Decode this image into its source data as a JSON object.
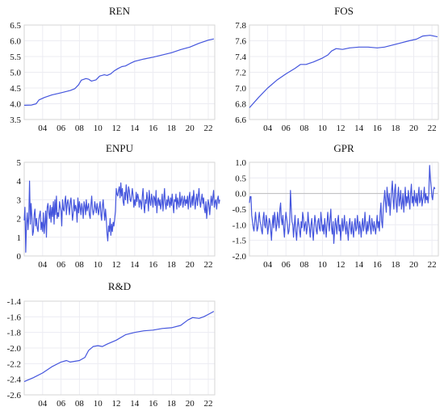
{
  "series_color": "#4455dd",
  "chart_data": [
    {
      "type": "line",
      "title": "REN",
      "xlim": [
        2002,
        2022.7
      ],
      "ylim": [
        3.5,
        6.5
      ],
      "x_ticks": [
        4,
        6,
        8,
        10,
        12,
        14,
        16,
        18,
        20,
        22
      ],
      "x_tick_labels": [
        "04",
        "06",
        "08",
        "10",
        "12",
        "14",
        "16",
        "18",
        "20",
        "22"
      ],
      "y_ticks": [
        3.5,
        4.0,
        4.5,
        5.0,
        5.5,
        6.0,
        6.5
      ],
      "y_tick_labels": [
        "3.5",
        "4.0",
        "4.5",
        "5.0",
        "5.5",
        "6.0",
        "6.5"
      ],
      "grid": true,
      "mode": "smooth",
      "points": [
        [
          2002.0,
          3.95
        ],
        [
          2002.8,
          3.96
        ],
        [
          2003.3,
          4.0
        ],
        [
          2003.6,
          4.12
        ],
        [
          2004.2,
          4.2
        ],
        [
          2005.0,
          4.28
        ],
        [
          2006.0,
          4.35
        ],
        [
          2007.0,
          4.42
        ],
        [
          2007.5,
          4.48
        ],
        [
          2007.9,
          4.6
        ],
        [
          2008.2,
          4.75
        ],
        [
          2008.7,
          4.8
        ],
        [
          2009.0,
          4.78
        ],
        [
          2009.3,
          4.72
        ],
        [
          2009.8,
          4.76
        ],
        [
          2010.2,
          4.88
        ],
        [
          2010.7,
          4.92
        ],
        [
          2011.0,
          4.9
        ],
        [
          2011.4,
          4.95
        ],
        [
          2011.8,
          5.05
        ],
        [
          2012.2,
          5.12
        ],
        [
          2012.6,
          5.18
        ],
        [
          2013.0,
          5.2
        ],
        [
          2013.5,
          5.28
        ],
        [
          2014.0,
          5.35
        ],
        [
          2015.0,
          5.42
        ],
        [
          2016.0,
          5.48
        ],
        [
          2017.0,
          5.55
        ],
        [
          2018.0,
          5.62
        ],
        [
          2019.0,
          5.72
        ],
        [
          2020.0,
          5.8
        ],
        [
          2021.0,
          5.92
        ],
        [
          2022.0,
          6.02
        ],
        [
          2022.6,
          6.06
        ]
      ]
    },
    {
      "type": "line",
      "title": "FOS",
      "xlim": [
        2002,
        2022.7
      ],
      "ylim": [
        6.6,
        7.8
      ],
      "x_ticks": [
        4,
        6,
        8,
        10,
        12,
        14,
        16,
        18,
        20,
        22
      ],
      "x_tick_labels": [
        "04",
        "06",
        "08",
        "10",
        "12",
        "14",
        "16",
        "18",
        "20",
        "22"
      ],
      "y_ticks": [
        6.6,
        6.8,
        7.0,
        7.2,
        7.4,
        7.6,
        7.8
      ],
      "y_tick_labels": [
        "6.6",
        "6.8",
        "7.0",
        "7.2",
        "7.4",
        "7.6",
        "7.8"
      ],
      "grid": true,
      "mode": "smooth",
      "points": [
        [
          2002.0,
          6.75
        ],
        [
          2003.0,
          6.88
        ],
        [
          2004.0,
          7.0
        ],
        [
          2005.0,
          7.1
        ],
        [
          2006.0,
          7.18
        ],
        [
          2007.0,
          7.25
        ],
        [
          2007.6,
          7.3
        ],
        [
          2008.2,
          7.3
        ],
        [
          2009.0,
          7.33
        ],
        [
          2010.0,
          7.38
        ],
        [
          2010.6,
          7.42
        ],
        [
          2011.0,
          7.47
        ],
        [
          2011.5,
          7.5
        ],
        [
          2012.2,
          7.49
        ],
        [
          2013.0,
          7.51
        ],
        [
          2014.0,
          7.52
        ],
        [
          2015.0,
          7.52
        ],
        [
          2016.0,
          7.51
        ],
        [
          2016.8,
          7.52
        ],
        [
          2017.5,
          7.54
        ],
        [
          2018.5,
          7.57
        ],
        [
          2019.5,
          7.6
        ],
        [
          2020.3,
          7.62
        ],
        [
          2021.0,
          7.66
        ],
        [
          2021.8,
          7.67
        ],
        [
          2022.6,
          7.65
        ]
      ]
    },
    {
      "type": "line",
      "title": "ENPU",
      "xlim": [
        2002,
        2022.7
      ],
      "ylim": [
        0,
        5
      ],
      "x_ticks": [
        4,
        6,
        8,
        10,
        12,
        14,
        16,
        18,
        20,
        22
      ],
      "x_tick_labels": [
        "04",
        "06",
        "08",
        "10",
        "12",
        "14",
        "16",
        "18",
        "20",
        "22"
      ],
      "y_ticks": [
        0,
        1,
        2,
        3,
        4,
        5
      ],
      "y_tick_labels": [
        "0",
        "1",
        "2",
        "3",
        "4",
        "5"
      ],
      "grid": true,
      "mode": "monthly",
      "x_start": 2002.0,
      "x_step": 0.0833,
      "values": [
        1.9,
        2.6,
        0.2,
        1.7,
        2.3,
        1.4,
        2.1,
        4.0,
        1.7,
        2.8,
        2.1,
        1.1,
        1.3,
        2.2,
        2.5,
        1.6,
        2.0,
        1.5,
        1.3,
        1.9,
        2.2,
        2.4,
        1.4,
        1.8,
        1.3,
        2.3,
        1.2,
        1.7,
        2.4,
        1.0,
        2.6,
        2.8,
        2.3,
        2.0,
        2.7,
        1.8,
        2.6,
        2.1,
        2.9,
        1.7,
        3.0,
        2.2,
        3.2,
        2.0,
        2.3,
        2.1,
        2.9,
        2.6,
        2.4,
        1.6,
        3.0,
        2.5,
        2.4,
        2.9,
        3.2,
        2.2,
        2.8,
        3.0,
        2.6,
        2.2,
        2.9,
        3.1,
        2.5,
        1.9,
        2.3,
        3.0,
        2.4,
        2.7,
        2.5,
        1.8,
        3.1,
        2.3,
        2.9,
        2.6,
        2.2,
        2.8,
        2.5,
        2.0,
        2.9,
        2.7,
        2.2,
        3.0,
        2.4,
        2.6,
        2.8,
        2.2,
        2.0,
        2.7,
        3.2,
        2.5,
        2.2,
        2.4,
        2.9,
        2.6,
        2.3,
        2.8,
        2.5,
        2.2,
        2.6,
        2.9,
        2.2,
        1.9,
        2.7,
        3.0,
        2.4,
        1.9,
        2.5,
        2.0,
        1.2,
        0.8,
        1.6,
        1.3,
        2.0,
        1.1,
        1.7,
        1.3,
        1.8,
        1.6,
        2.0,
        2.4,
        3.6,
        3.3,
        3.2,
        3.5,
        3.7,
        3.1,
        3.9,
        3.2,
        3.6,
        2.9,
        2.7,
        3.4,
        3.0,
        3.8,
        3.3,
        2.8,
        3.7,
        3.5,
        3.0,
        2.9,
        3.2,
        3.6,
        3.2,
        2.6,
        3.0,
        2.7,
        3.4,
        2.9,
        3.3,
        3.1,
        2.6,
        3.0,
        2.9,
        2.5,
        3.2,
        3.6,
        2.7,
        2.3,
        3.0,
        2.8,
        3.4,
        3.0,
        2.4,
        3.5,
        2.9,
        2.7,
        3.3,
        3.0,
        2.6,
        3.2,
        3.1,
        2.7,
        3.5,
        2.3,
        2.9,
        3.1,
        2.7,
        3.0,
        2.5,
        2.8,
        3.3,
        2.4,
        3.0,
        3.6,
        2.8,
        2.5,
        3.0,
        2.7,
        3.2,
        2.9,
        2.6,
        3.1,
        2.7,
        3.3,
        2.8,
        2.3,
        3.0,
        2.9,
        3.3,
        2.5,
        3.1,
        2.8,
        2.6,
        3.4,
        2.7,
        3.0,
        3.2,
        2.6,
        2.9,
        3.2,
        2.7,
        3.0,
        2.8,
        3.2,
        2.5,
        3.1,
        3.4,
        2.6,
        2.8,
        3.2,
        2.7,
        3.5,
        3.0,
        2.5,
        3.0,
        3.3,
        2.7,
        3.2,
        3.6,
        2.9,
        2.6,
        3.0,
        3.3,
        2.8,
        3.1,
        2.5,
        2.3,
        2.9,
        2.0,
        2.6,
        3.0,
        2.7,
        2.2,
        2.8,
        3.2,
        2.7,
        3.1,
        3.5,
        2.6,
        2.9,
        3.0,
        2.5,
        3.0,
        3.2,
        2.8,
        3.0
      ]
    },
    {
      "type": "line",
      "title": "GPR",
      "xlim": [
        2002,
        2022.7
      ],
      "ylim": [
        -2.0,
        1.0
      ],
      "x_ticks": [
        4,
        6,
        8,
        10,
        12,
        14,
        16,
        18,
        20,
        22
      ],
      "x_tick_labels": [
        "04",
        "06",
        "08",
        "10",
        "12",
        "14",
        "16",
        "18",
        "20",
        "22"
      ],
      "y_ticks": [
        -2.0,
        -1.5,
        -1.0,
        -0.5,
        0.0,
        0.5,
        1.0
      ],
      "y_tick_labels": [
        "-2.0",
        "-1.5",
        "-1.0",
        "-0.5",
        "0.0",
        "0.5",
        "1.0"
      ],
      "grid": true,
      "zero_line": true,
      "mode": "monthly",
      "x_start": 2002.0,
      "x_step": 0.0833,
      "values": [
        -0.3,
        -0.1,
        -0.1,
        -0.7,
        -0.9,
        -1.1,
        -1.2,
        -0.9,
        -0.6,
        -0.9,
        -1.2,
        -1.1,
        -0.8,
        -0.6,
        -0.9,
        -1.0,
        -1.2,
        -1.3,
        -0.8,
        -0.6,
        -1.0,
        -1.1,
        -0.7,
        -0.9,
        -1.3,
        -1.1,
        -0.8,
        -0.9,
        -1.2,
        -1.5,
        -1.0,
        -0.7,
        -1.1,
        -0.6,
        -0.8,
        -1.2,
        -1.0,
        -0.6,
        -0.9,
        -1.1,
        -0.5,
        -0.3,
        -0.8,
        -1.0,
        -0.7,
        -1.1,
        -1.4,
        -0.9,
        -0.6,
        -0.8,
        -1.0,
        -1.3,
        -1.2,
        -0.9,
        0.1,
        -0.5,
        -0.9,
        -1.0,
        -1.4,
        -1.0,
        -0.7,
        -1.2,
        -1.5,
        -1.1,
        -0.8,
        -1.0,
        -1.2,
        -1.4,
        -0.9,
        -1.1,
        -0.6,
        -0.8,
        -1.2,
        -1.0,
        -0.9,
        -1.3,
        -1.1,
        -0.6,
        -0.9,
        -1.1,
        -1.4,
        -1.0,
        -0.8,
        -1.2,
        -1.5,
        -1.1,
        -0.7,
        -0.9,
        -1.2,
        -1.3,
        -0.9,
        -0.8,
        -1.1,
        -1.2,
        -0.6,
        -0.9,
        -1.2,
        -1.0,
        -1.3,
        -0.8,
        -1.1,
        -1.4,
        -1.0,
        -0.6,
        -0.9,
        -1.2,
        -0.8,
        -0.5,
        -1.1,
        -1.3,
        -0.9,
        -1.6,
        -1.2,
        -0.8,
        -1.0,
        -1.3,
        -0.9,
        -0.7,
        -1.2,
        -1.0,
        -1.5,
        -1.1,
        -0.8,
        -1.2,
        -1.0,
        -0.7,
        -1.1,
        -1.3,
        -0.9,
        -1.2,
        -1.5,
        -1.0,
        -0.8,
        -1.1,
        -1.3,
        -0.9,
        -1.2,
        -1.4,
        -1.0,
        -0.8,
        -1.2,
        -1.1,
        -0.7,
        -1.0,
        -1.3,
        -0.9,
        -1.1,
        -1.4,
        -1.0,
        -0.8,
        -1.2,
        -1.0,
        -0.6,
        -1.1,
        -1.3,
        -0.9,
        -1.2,
        -1.0,
        -0.7,
        -1.1,
        -1.3,
        -0.8,
        -1.0,
        -1.2,
        -0.9,
        -1.1,
        -1.3,
        -1.0,
        -0.7,
        -1.1,
        -0.9,
        -1.2,
        -0.6,
        -0.3,
        -0.9,
        -1.1,
        -0.5,
        -0.2,
        0.1,
        -0.3,
        -0.6,
        0.2,
        -0.1,
        -0.4,
        0.0,
        -0.7,
        -0.3,
        0.1,
        0.4,
        -0.2,
        -0.5,
        0.1,
        0.3,
        -0.3,
        -0.6,
        -0.1,
        0.2,
        -0.4,
        -0.2,
        0.1,
        -0.5,
        -0.3,
        0.0,
        -0.6,
        -0.2,
        0.2,
        -0.4,
        -0.1,
        -0.3,
        0.1,
        -0.2,
        -0.5,
        0.0,
        0.3,
        -0.3,
        -0.1,
        -0.4,
        0.1,
        -0.2,
        -0.3,
        0.0,
        -0.4,
        -0.1,
        0.2,
        -0.3,
        -0.2,
        0.1,
        -0.4,
        -0.2,
        -0.1,
        0.2,
        -0.3,
        0.0,
        -0.2,
        -0.1,
        -0.3,
        0.0,
        0.9,
        0.5,
        0.2,
        -0.1,
        -0.2,
        0.1,
        0.2,
        0.15
      ]
    },
    {
      "type": "line",
      "title": "R&D",
      "xlim": [
        2002,
        2022.7
      ],
      "ylim": [
        -2.6,
        -1.4
      ],
      "x_ticks": [
        4,
        6,
        8,
        10,
        12,
        14,
        16,
        18,
        20,
        22
      ],
      "x_tick_labels": [
        "04",
        "06",
        "08",
        "10",
        "12",
        "14",
        "16",
        "18",
        "20",
        "22"
      ],
      "y_ticks": [
        -2.6,
        -2.4,
        -2.2,
        -2.0,
        -1.8,
        -1.6,
        -1.4
      ],
      "y_tick_labels": [
        "-2.6",
        "-2.4",
        "-2.2",
        "-2.0",
        "-1.8",
        "-1.6",
        "-1.4"
      ],
      "grid": true,
      "mode": "smooth",
      "points": [
        [
          2002.0,
          -2.43
        ],
        [
          2003.0,
          -2.38
        ],
        [
          2004.0,
          -2.32
        ],
        [
          2005.0,
          -2.24
        ],
        [
          2006.0,
          -2.18
        ],
        [
          2006.6,
          -2.16
        ],
        [
          2007.0,
          -2.18
        ],
        [
          2008.0,
          -2.16
        ],
        [
          2008.6,
          -2.12
        ],
        [
          2009.0,
          -2.03
        ],
        [
          2009.5,
          -1.98
        ],
        [
          2010.0,
          -1.97
        ],
        [
          2010.5,
          -1.98
        ],
        [
          2011.0,
          -1.95
        ],
        [
          2012.0,
          -1.9
        ],
        [
          2013.0,
          -1.83
        ],
        [
          2014.0,
          -1.8
        ],
        [
          2015.0,
          -1.78
        ],
        [
          2016.0,
          -1.77
        ],
        [
          2017.0,
          -1.75
        ],
        [
          2018.0,
          -1.74
        ],
        [
          2019.0,
          -1.71
        ],
        [
          2019.8,
          -1.64
        ],
        [
          2020.3,
          -1.61
        ],
        [
          2021.0,
          -1.62
        ],
        [
          2021.5,
          -1.6
        ],
        [
          2022.0,
          -1.57
        ],
        [
          2022.6,
          -1.53
        ]
      ]
    }
  ]
}
